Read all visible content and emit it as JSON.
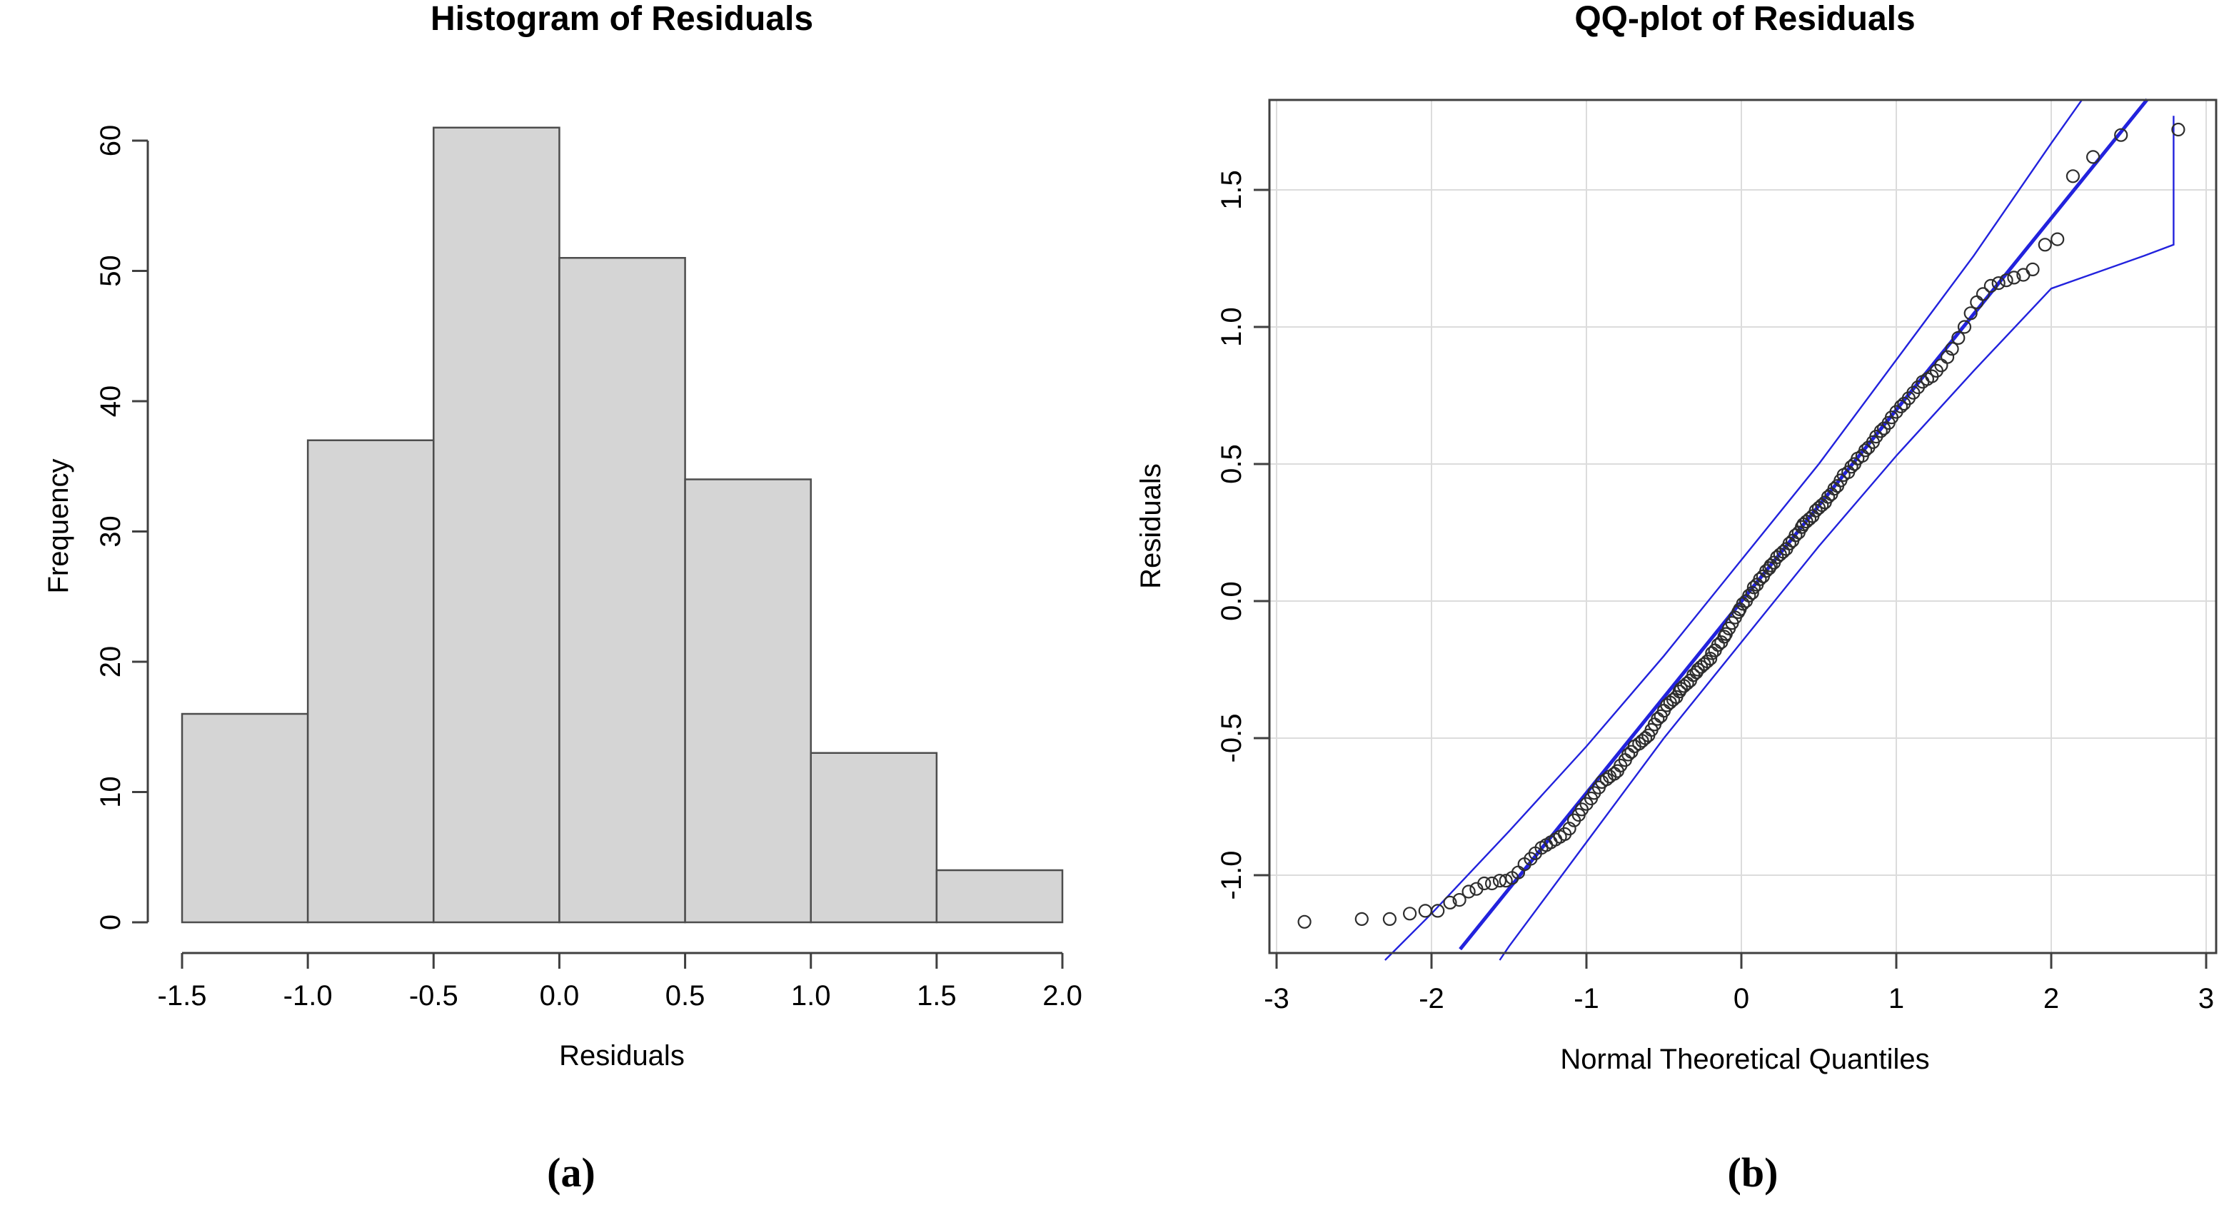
{
  "panel_labels": {
    "a": "(a)",
    "b": "(b)"
  },
  "colors": {
    "bar_fill": "#d5d5d5",
    "bar_stroke": "#4d4d4d",
    "axis": "#404040",
    "grid": "#dcdcdc",
    "blue_line": "#2222dd",
    "point_stroke": "#2e2e2e"
  },
  "chart_data": [
    {
      "type": "bar",
      "variant": "histogram",
      "title": "Histogram of Residuals",
      "xlabel": "Residuals",
      "ylabel": "Frequency",
      "bin_edges": [
        -1.5,
        -1.0,
        -0.5,
        0.0,
        0.5,
        1.0,
        1.5,
        2.0
      ],
      "counts": [
        16,
        37,
        61,
        51,
        34,
        13,
        4
      ],
      "x_ticks": [
        -1.5,
        -1.0,
        -0.5,
        0.0,
        0.5,
        1.0,
        1.5,
        2.0
      ],
      "y_ticks": [
        0,
        10,
        20,
        30,
        40,
        50,
        60
      ],
      "xlim": [
        -1.5,
        2.0
      ],
      "ylim": [
        0,
        61
      ],
      "grid": false,
      "legend": "none"
    },
    {
      "type": "scatter",
      "variant": "qq-plot",
      "title": "QQ-plot of Residuals",
      "xlabel": "Normal Theoretical Quantiles",
      "ylabel": "Residuals",
      "x_ticks": [
        -3,
        -2,
        -1,
        0,
        1,
        2,
        3
      ],
      "y_ticks": [
        -1.0,
        -0.5,
        0.0,
        0.5,
        1.0,
        1.5
      ],
      "xlim": [
        -3.05,
        3.06
      ],
      "ylim": [
        -1.28,
        1.83
      ],
      "grid": true,
      "legend": "none",
      "reference_line": [
        [
          -1.815,
          -1.27
        ],
        [
          2.62,
          1.83
        ]
      ],
      "envelope_upper": [
        [
          -2.3,
          -1.31
        ],
        [
          -2.0,
          -1.14
        ],
        [
          -1.5,
          -0.84
        ],
        [
          -1.0,
          -0.53
        ],
        [
          -0.5,
          -0.2
        ],
        [
          0.0,
          0.15
        ],
        [
          0.5,
          0.5
        ],
        [
          1.0,
          0.88
        ],
        [
          1.5,
          1.26
        ],
        [
          2.0,
          1.67
        ],
        [
          2.2,
          1.83
        ]
      ],
      "envelope_lower": [
        [
          -1.56,
          -1.31
        ],
        [
          -1.5,
          -1.26
        ],
        [
          -1.0,
          -0.88
        ],
        [
          -0.5,
          -0.5
        ],
        [
          0.0,
          -0.15
        ],
        [
          0.5,
          0.2
        ],
        [
          1.0,
          0.53
        ],
        [
          1.5,
          0.84
        ],
        [
          2.0,
          1.14
        ],
        [
          2.3,
          1.2
        ],
        [
          2.6,
          1.26
        ],
        [
          2.79,
          1.3
        ],
        [
          2.79,
          1.77
        ]
      ],
      "points": [
        [
          -2.82,
          -1.17
        ],
        [
          -2.45,
          -1.16
        ],
        [
          -2.27,
          -1.16
        ],
        [
          -2.14,
          -1.14
        ],
        [
          -2.04,
          -1.13
        ],
        [
          -1.96,
          -1.13
        ],
        [
          -1.88,
          -1.1
        ],
        [
          -1.82,
          -1.09
        ],
        [
          -1.76,
          -1.06
        ],
        [
          -1.71,
          -1.05
        ],
        [
          -1.66,
          -1.03
        ],
        [
          -1.61,
          -1.03
        ],
        [
          -1.56,
          -1.02
        ],
        [
          -1.52,
          -1.02
        ],
        [
          -1.48,
          -1.01
        ],
        [
          -1.44,
          -0.99
        ],
        [
          -1.4,
          -0.96
        ],
        [
          -1.36,
          -0.94
        ],
        [
          -1.33,
          -0.92
        ],
        [
          -1.29,
          -0.9
        ],
        [
          -1.26,
          -0.89
        ],
        [
          -1.23,
          -0.88
        ],
        [
          -1.2,
          -0.87
        ],
        [
          -1.17,
          -0.86
        ],
        [
          -1.14,
          -0.85
        ],
        [
          -1.11,
          -0.83
        ],
        [
          -1.08,
          -0.8
        ],
        [
          -1.05,
          -0.78
        ],
        [
          -1.03,
          -0.76
        ],
        [
          -1.0,
          -0.74
        ],
        [
          -0.97,
          -0.72
        ],
        [
          -0.95,
          -0.7
        ],
        [
          -0.92,
          -0.68
        ],
        [
          -0.9,
          -0.66
        ],
        [
          -0.87,
          -0.65
        ],
        [
          -0.85,
          -0.64
        ],
        [
          -0.82,
          -0.63
        ],
        [
          -0.8,
          -0.62
        ],
        [
          -0.78,
          -0.6
        ],
        [
          -0.75,
          -0.58
        ],
        [
          -0.73,
          -0.56
        ],
        [
          -0.71,
          -0.55
        ],
        [
          -0.69,
          -0.53
        ],
        [
          -0.66,
          -0.52
        ],
        [
          -0.64,
          -0.51
        ],
        [
          -0.62,
          -0.5
        ],
        [
          -0.6,
          -0.49
        ],
        [
          -0.58,
          -0.47
        ],
        [
          -0.56,
          -0.45
        ],
        [
          -0.54,
          -0.43
        ],
        [
          -0.52,
          -0.42
        ],
        [
          -0.5,
          -0.4
        ],
        [
          -0.48,
          -0.38
        ],
        [
          -0.46,
          -0.37
        ],
        [
          -0.44,
          -0.36
        ],
        [
          -0.42,
          -0.35
        ],
        [
          -0.4,
          -0.33
        ],
        [
          -0.39,
          -0.32
        ],
        [
          -0.37,
          -0.31
        ],
        [
          -0.35,
          -0.3
        ],
        [
          -0.33,
          -0.29
        ],
        [
          -0.31,
          -0.27
        ],
        [
          -0.29,
          -0.26
        ],
        [
          -0.28,
          -0.25
        ],
        [
          -0.26,
          -0.24
        ],
        [
          -0.24,
          -0.23
        ],
        [
          -0.22,
          -0.22
        ],
        [
          -0.2,
          -0.21
        ],
        [
          -0.19,
          -0.19
        ],
        [
          -0.17,
          -0.18
        ],
        [
          -0.15,
          -0.16
        ],
        [
          -0.13,
          -0.15
        ],
        [
          -0.11,
          -0.13
        ],
        [
          -0.1,
          -0.12
        ],
        [
          -0.08,
          -0.1
        ],
        [
          -0.06,
          -0.08
        ],
        [
          -0.04,
          -0.06
        ],
        [
          -0.02,
          -0.04
        ],
        [
          -0.01,
          -0.03
        ],
        [
          0.01,
          -0.01
        ],
        [
          0.03,
          0.0
        ],
        [
          0.05,
          0.02
        ],
        [
          0.07,
          0.03
        ],
        [
          0.08,
          0.05
        ],
        [
          0.1,
          0.06
        ],
        [
          0.12,
          0.08
        ],
        [
          0.14,
          0.09
        ],
        [
          0.16,
          0.11
        ],
        [
          0.18,
          0.12
        ],
        [
          0.19,
          0.13
        ],
        [
          0.21,
          0.14
        ],
        [
          0.23,
          0.16
        ],
        [
          0.25,
          0.17
        ],
        [
          0.27,
          0.18
        ],
        [
          0.29,
          0.19
        ],
        [
          0.31,
          0.21
        ],
        [
          0.33,
          0.22
        ],
        [
          0.35,
          0.24
        ],
        [
          0.37,
          0.25
        ],
        [
          0.39,
          0.27
        ],
        [
          0.4,
          0.28
        ],
        [
          0.42,
          0.29
        ],
        [
          0.44,
          0.3
        ],
        [
          0.46,
          0.31
        ],
        [
          0.48,
          0.33
        ],
        [
          0.5,
          0.34
        ],
        [
          0.52,
          0.35
        ],
        [
          0.54,
          0.36
        ],
        [
          0.56,
          0.38
        ],
        [
          0.58,
          0.39
        ],
        [
          0.6,
          0.41
        ],
        [
          0.62,
          0.42
        ],
        [
          0.64,
          0.44
        ],
        [
          0.66,
          0.46
        ],
        [
          0.69,
          0.47
        ],
        [
          0.71,
          0.49
        ],
        [
          0.73,
          0.5
        ],
        [
          0.75,
          0.52
        ],
        [
          0.78,
          0.53
        ],
        [
          0.8,
          0.55
        ],
        [
          0.82,
          0.56
        ],
        [
          0.85,
          0.58
        ],
        [
          0.87,
          0.6
        ],
        [
          0.9,
          0.62
        ],
        [
          0.92,
          0.63
        ],
        [
          0.95,
          0.65
        ],
        [
          0.97,
          0.67
        ],
        [
          1.0,
          0.69
        ],
        [
          1.03,
          0.71
        ],
        [
          1.05,
          0.72
        ],
        [
          1.08,
          0.74
        ],
        [
          1.11,
          0.76
        ],
        [
          1.14,
          0.78
        ],
        [
          1.17,
          0.8
        ],
        [
          1.2,
          0.81
        ],
        [
          1.23,
          0.82
        ],
        [
          1.26,
          0.84
        ],
        [
          1.29,
          0.86
        ],
        [
          1.33,
          0.89
        ],
        [
          1.36,
          0.92
        ],
        [
          1.4,
          0.96
        ],
        [
          1.44,
          1.0
        ],
        [
          1.48,
          1.05
        ],
        [
          1.52,
          1.09
        ],
        [
          1.56,
          1.12
        ],
        [
          1.61,
          1.15
        ],
        [
          1.66,
          1.16
        ],
        [
          1.71,
          1.17
        ],
        [
          1.76,
          1.18
        ],
        [
          1.82,
          1.19
        ],
        [
          1.88,
          1.21
        ],
        [
          1.96,
          1.3
        ],
        [
          2.04,
          1.32
        ],
        [
          2.14,
          1.55
        ],
        [
          2.27,
          1.62
        ],
        [
          2.45,
          1.7
        ],
        [
          2.82,
          1.72
        ]
      ]
    }
  ]
}
